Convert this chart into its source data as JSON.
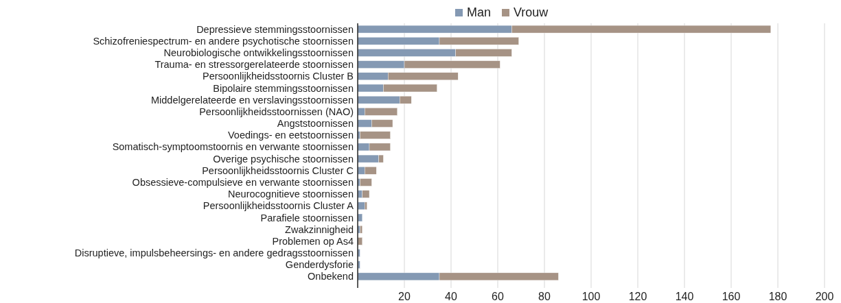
{
  "chart_data": {
    "type": "bar",
    "orientation": "horizontal",
    "stacked": true,
    "categories": [
      "Depressieve stemmingsstoornissen",
      "Schizofreniespectrum- en andere psychotische stoornissen",
      "Neurobiologische ontwikkelingsstoornissen",
      "Trauma- en stressorgerelateerde stoornissen",
      "Persoonlijkheidsstoornis Cluster B",
      "Bipolaire stemmingsstoornissen",
      "Middelgerelateerde en verslavingsstoornissen",
      "Persoonlijkheidsstoornissen (NAO)",
      "Angststoornissen",
      "Voedings- en eetstoornissen",
      "Somatisch-symptoomstoornis en verwante stoornissen",
      "Overige psychische stoornissen",
      "Persoonlijkheidsstoornis Cluster C",
      "Obsessieve-compulsieve en verwante stoornissen",
      "Neurocognitieve stoornissen",
      "Persoonlijkheidsstoornis Cluster A",
      "Parafiele stoornissen",
      "Zwakzinnigheid",
      "Problemen op As4",
      "Disruptieve, impulsbeheersings- en andere gedragsstoornissen",
      "Genderdysforie",
      "Onbekend"
    ],
    "series": [
      {
        "name": "Man",
        "color": "#8499b3",
        "values": [
          66,
          35,
          42,
          20,
          13,
          11,
          18,
          3,
          6,
          1,
          5,
          9,
          3,
          1,
          2,
          3,
          2,
          1,
          0,
          1,
          1,
          35
        ]
      },
      {
        "name": "Vrouw",
        "color": "#a69385",
        "values": [
          111,
          34,
          24,
          41,
          30,
          23,
          5,
          14,
          9,
          13,
          9,
          2,
          5,
          5,
          3,
          1,
          0,
          1,
          2,
          0,
          0,
          51
        ]
      }
    ],
    "xlim": [
      0,
      200
    ],
    "xticks": [
      20,
      40,
      60,
      80,
      100,
      120,
      140,
      160,
      180,
      200
    ],
    "grid": "x",
    "legend": "top"
  }
}
